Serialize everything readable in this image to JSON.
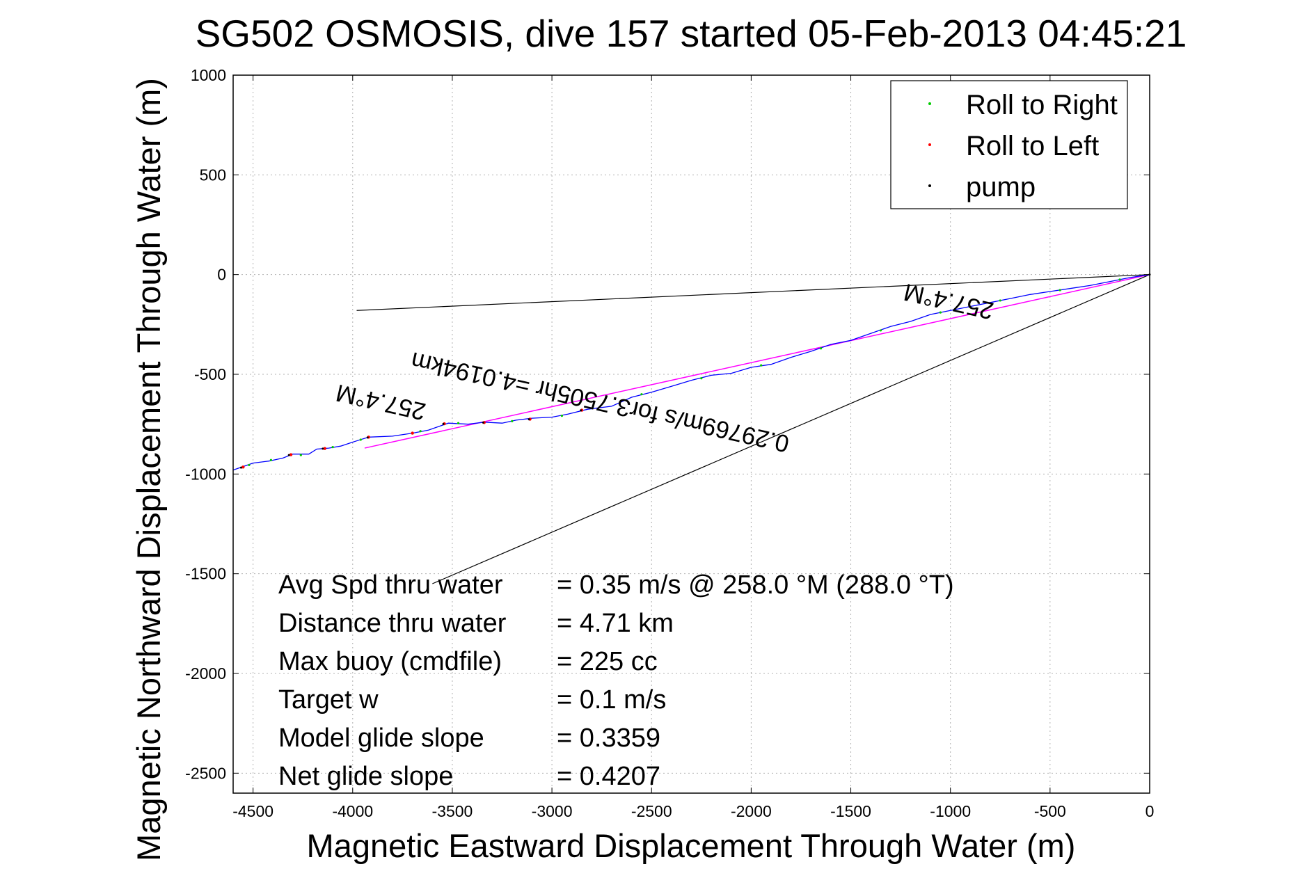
{
  "chart_data": {
    "type": "line",
    "title": "SG502 OSMOSIS, dive 157 started 05-Feb-2013 04:45:21",
    "xlabel": "Magnetic Eastward Displacement Through Water (m)",
    "ylabel": "Magnetic Northward Displacement Through Water (m)",
    "xlim": [
      -4600,
      0
    ],
    "ylim": [
      -2600,
      1000
    ],
    "xticks": [
      -4500,
      -4000,
      -3500,
      -3000,
      -2500,
      -2000,
      -1500,
      -1000,
      -500,
      0
    ],
    "yticks": [
      1000,
      500,
      0,
      -500,
      -1000,
      -1500,
      -2000,
      -2500
    ],
    "grid": true,
    "legend_position": "top-right",
    "legend": [
      {
        "label": "Roll to Right",
        "color": "#00cc00"
      },
      {
        "label": "Roll to Left",
        "color": "#ff0000"
      },
      {
        "label": "pump",
        "color": "#000000"
      }
    ],
    "colors": {
      "track": "#0000ff",
      "fit": "#ff00ff",
      "reference": "#000000"
    },
    "track": [
      [
        -4600,
        -980
      ],
      [
        -4500,
        -945
      ],
      [
        -4420,
        -935
      ],
      [
        -4350,
        -920
      ],
      [
        -4300,
        -900
      ],
      [
        -4220,
        -900
      ],
      [
        -4180,
        -875
      ],
      [
        -4120,
        -870
      ],
      [
        -4060,
        -860
      ],
      [
        -4000,
        -840
      ],
      [
        -3920,
        -815
      ],
      [
        -3800,
        -810
      ],
      [
        -3700,
        -795
      ],
      [
        -3620,
        -780
      ],
      [
        -3520,
        -745
      ],
      [
        -3420,
        -750
      ],
      [
        -3340,
        -740
      ],
      [
        -3250,
        -745
      ],
      [
        -3180,
        -730
      ],
      [
        -3100,
        -720
      ],
      [
        -3000,
        -715
      ],
      [
        -2920,
        -700
      ],
      [
        -2820,
        -675
      ],
      [
        -2700,
        -660
      ],
      [
        -2600,
        -615
      ],
      [
        -2500,
        -590
      ],
      [
        -2400,
        -560
      ],
      [
        -2300,
        -530
      ],
      [
        -2200,
        -505
      ],
      [
        -2100,
        -495
      ],
      [
        -2000,
        -465
      ],
      [
        -1900,
        -450
      ],
      [
        -1800,
        -415
      ],
      [
        -1700,
        -385
      ],
      [
        -1600,
        -350
      ],
      [
        -1500,
        -330
      ],
      [
        -1400,
        -295
      ],
      [
        -1300,
        -260
      ],
      [
        -1200,
        -235
      ],
      [
        -1100,
        -200
      ],
      [
        -1000,
        -180
      ],
      [
        -900,
        -160
      ],
      [
        -800,
        -140
      ],
      [
        -700,
        -120
      ],
      [
        -600,
        -100
      ],
      [
        -500,
        -85
      ],
      [
        -400,
        -70
      ],
      [
        -300,
        -55
      ],
      [
        -200,
        -35
      ],
      [
        -100,
        -15
      ],
      [
        0,
        0
      ]
    ],
    "roll_right_points": [
      [
        -4520,
        -955
      ],
      [
        -4410,
        -930
      ],
      [
        -4260,
        -905
      ],
      [
        -4100,
        -865
      ],
      [
        -3960,
        -828
      ],
      [
        -3660,
        -785
      ],
      [
        -3470,
        -745
      ],
      [
        -3200,
        -735
      ],
      [
        -2950,
        -708
      ],
      [
        -2550,
        -600
      ],
      [
        -2250,
        -520
      ],
      [
        -1950,
        -455
      ],
      [
        -1650,
        -370
      ],
      [
        -1350,
        -280
      ],
      [
        -1050,
        -190
      ],
      [
        -750,
        -130
      ],
      [
        -450,
        -78
      ],
      [
        -150,
        -25
      ]
    ],
    "roll_left_points": [
      [
        -4550,
        -965
      ],
      [
        -4310,
        -903
      ],
      [
        -4140,
        -872
      ],
      [
        -3920,
        -815
      ],
      [
        -3700,
        -795
      ],
      [
        -3540,
        -748
      ],
      [
        -3340,
        -742
      ],
      [
        -3110,
        -725
      ],
      [
        -2850,
        -680
      ]
    ],
    "pump_points": [
      [
        -4560,
        -968
      ],
      [
        -4320,
        -905
      ],
      [
        -4150,
        -873
      ],
      [
        -3925,
        -817
      ],
      [
        -3545,
        -749
      ],
      [
        -3345,
        -742
      ],
      [
        -3115,
        -726
      ],
      [
        -2855,
        -681
      ],
      [
        0,
        0
      ]
    ],
    "fit_line": [
      [
        -3940,
        -870
      ],
      [
        0,
        0
      ]
    ],
    "reference_lines": [
      [
        [
          -3980,
          -180
        ],
        [
          0,
          0
        ]
      ],
      [
        [
          -3600,
          -1550
        ],
        [
          0,
          0
        ]
      ]
    ],
    "annotations": [
      {
        "text": "257.4°M",
        "x": -3850,
        "y": -600,
        "angle": 192.6
      },
      {
        "text": "0.29769m/s for3.7505hr =4.0194km",
        "x": -2750,
        "y": -600,
        "angle": 192.6
      },
      {
        "text": "257.4°M",
        "x": -1000,
        "y": -95,
        "angle": 192.6
      }
    ],
    "stats": [
      {
        "label": "Avg Spd thru water",
        "value": "=  0.35 m/s @ 258.0 °M (288.0 °T)"
      },
      {
        "label": "Distance thru water",
        "value": "=  4.71 km"
      },
      {
        "label": "Max buoy (cmdfile)",
        "value": "= 225 cc"
      },
      {
        "label": "Target w",
        "value": "= 0.1 m/s"
      },
      {
        "label": "Model glide slope",
        "value": "= 0.3359"
      },
      {
        "label": "Net glide slope",
        "value": "= 0.4207"
      }
    ]
  }
}
